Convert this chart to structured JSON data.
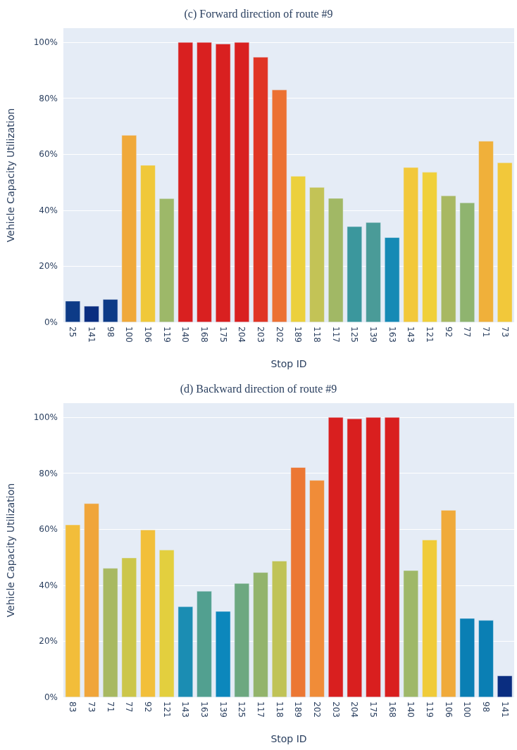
{
  "chart_data": [
    {
      "type": "bar",
      "title": "(c) Forward direction of route #9",
      "xlabel": "Stop ID",
      "ylabel": "Vehicle Capacity Utilization",
      "categories": [
        "25",
        "141",
        "98",
        "100",
        "106",
        "119",
        "140",
        "168",
        "175",
        "204",
        "203",
        "202",
        "189",
        "118",
        "117",
        "125",
        "139",
        "163",
        "143",
        "121",
        "92",
        "77",
        "71",
        "73"
      ],
      "values": [
        7.6,
        5.8,
        8.2,
        66.8,
        56.1,
        44.2,
        100,
        100,
        99.4,
        100,
        94.7,
        83.0,
        52.2,
        48.2,
        44.3,
        34.2,
        35.7,
        30.3,
        55.3,
        53.6,
        45.2,
        42.7,
        64.7,
        57.0
      ],
      "colors": [
        "#0d3b87",
        "#0a2d80",
        "#0d3b87",
        "#f0a93a",
        "#f0c83a",
        "#9db869",
        "#d92020",
        "#d92020",
        "#d92020",
        "#d92020",
        "#e03524",
        "#ec7133",
        "#ecd03c",
        "#c3c356",
        "#a1b865",
        "#3b979d",
        "#4a9b98",
        "#168ab5",
        "#f2c83a",
        "#f0d03a",
        "#a8b862",
        "#8fb46f",
        "#f0b03a",
        "#f2c83a"
      ],
      "ylim": [
        0,
        105
      ],
      "yticks": [
        {
          "value": 0,
          "label": "0%"
        },
        {
          "value": 20,
          "label": "20%"
        },
        {
          "value": 40,
          "label": "40%"
        },
        {
          "value": 60,
          "label": "60%"
        },
        {
          "value": 80,
          "label": "80%"
        },
        {
          "value": 100,
          "label": "100%"
        }
      ],
      "grid": "y"
    },
    {
      "type": "bar",
      "title": "(d) Backward direction of route #9",
      "xlabel": "Stop ID",
      "ylabel": "Vehicle Capacity Utilization",
      "categories": [
        "83",
        "73",
        "71",
        "77",
        "92",
        "121",
        "143",
        "163",
        "139",
        "125",
        "117",
        "118",
        "189",
        "202",
        "203",
        "204",
        "175",
        "168",
        "140",
        "119",
        "106",
        "100",
        "98",
        "141"
      ],
      "values": [
        61.6,
        69.2,
        46.1,
        49.8,
        59.8,
        52.6,
        32.4,
        37.9,
        30.7,
        40.7,
        44.6,
        48.7,
        82.1,
        77.5,
        100,
        99.5,
        100,
        100,
        45.3,
        56.2,
        66.8,
        28.2,
        27.5,
        7.7
      ],
      "colors": [
        "#f2bd3a",
        "#f0a53a",
        "#a8b962",
        "#ccc64a",
        "#f2bf3a",
        "#e3cf3e",
        "#1b8db3",
        "#52a090",
        "#0c87bc",
        "#6da880",
        "#93b46c",
        "#c0c357",
        "#ec7734",
        "#f08c38",
        "#d91f1f",
        "#d91f1f",
        "#d91f1f",
        "#d91f1f",
        "#9fb869",
        "#f0cb39",
        "#f0aa3a",
        "#0a7fb4",
        "#0a7fb4",
        "#0a2d80"
      ],
      "ylim": [
        0,
        105
      ],
      "yticks": [
        {
          "value": 0,
          "label": "0%"
        },
        {
          "value": 20,
          "label": "20%"
        },
        {
          "value": 40,
          "label": "40%"
        },
        {
          "value": 60,
          "label": "60%"
        },
        {
          "value": 80,
          "label": "80%"
        },
        {
          "value": 100,
          "label": "100%"
        }
      ],
      "grid": "y"
    }
  ]
}
